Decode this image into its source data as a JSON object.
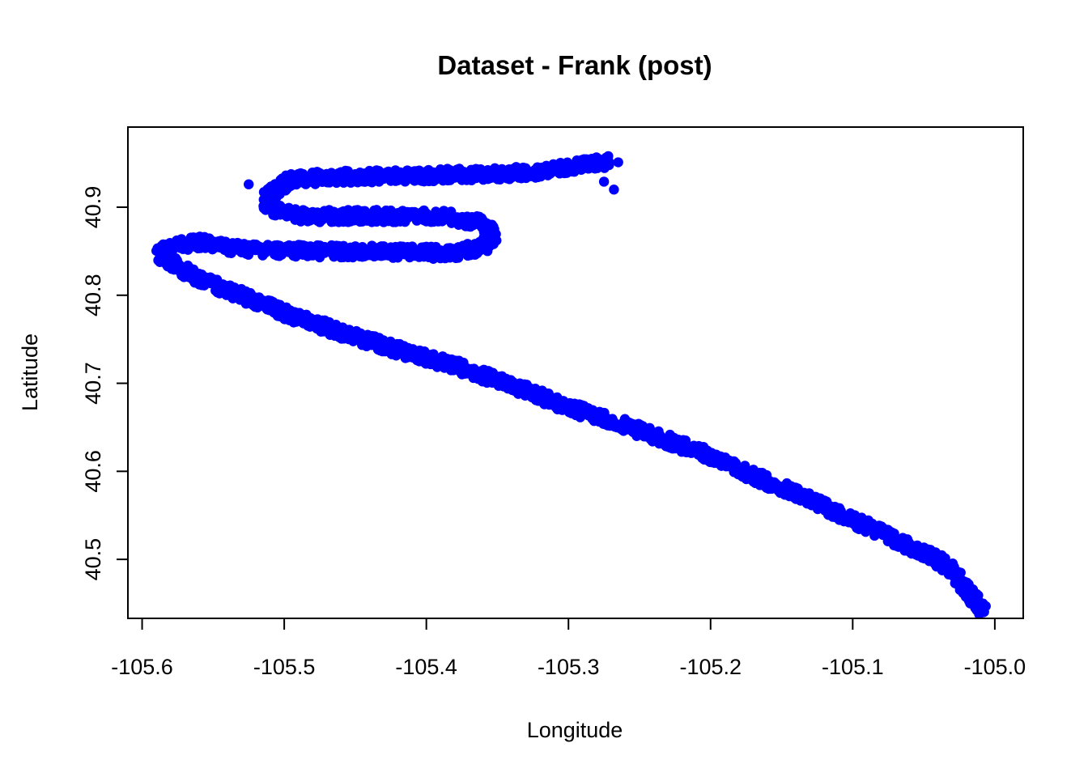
{
  "chart_data": {
    "type": "scatter",
    "title": "Dataset - Frank (post)",
    "xlabel": "Longitude",
    "ylabel": "Latitude",
    "xlim": [
      -105.61,
      -104.98
    ],
    "ylim": [
      40.433,
      40.991
    ],
    "xticks": [
      -105.6,
      -105.5,
      -105.4,
      -105.3,
      -105.2,
      -105.1,
      -105.0
    ],
    "xtick_labels": [
      "-105.6",
      "-105.5",
      "-105.4",
      "-105.3",
      "-105.2",
      "-105.1",
      "-105.0"
    ],
    "yticks": [
      40.5,
      40.6,
      40.7,
      40.8,
      40.9
    ],
    "ytick_labels": [
      "40.5",
      "40.6",
      "40.7",
      "40.8",
      "40.9"
    ],
    "grid": false,
    "legend": "none",
    "marker_color": "#0000ff",
    "series": [
      {
        "path": [
          [
            -105.008,
            40.44
          ],
          [
            -105.01,
            40.447
          ],
          [
            -105.018,
            40.46
          ],
          [
            -105.025,
            40.477
          ],
          [
            -105.032,
            40.49
          ],
          [
            -105.045,
            40.505
          ],
          [
            -105.06,
            40.515
          ],
          [
            -105.08,
            40.53
          ],
          [
            -105.1,
            40.545
          ],
          [
            -105.12,
            40.56
          ],
          [
            -105.14,
            40.575
          ],
          [
            -105.17,
            40.595
          ],
          [
            -105.2,
            40.618
          ],
          [
            -105.23,
            40.635
          ],
          [
            -105.26,
            40.652
          ],
          [
            -105.3,
            40.673
          ],
          [
            -105.34,
            40.698
          ],
          [
            -105.38,
            40.72
          ],
          [
            -105.42,
            40.738
          ],
          [
            -105.46,
            40.758
          ],
          [
            -105.5,
            40.78
          ],
          [
            -105.53,
            40.8
          ],
          [
            -105.555,
            40.815
          ],
          [
            -105.57,
            40.828
          ],
          [
            -105.58,
            40.838
          ],
          [
            -105.588,
            40.846
          ],
          [
            -105.58,
            40.855
          ],
          [
            -105.56,
            40.86
          ],
          [
            -105.53,
            40.853
          ],
          [
            -105.48,
            40.85
          ],
          [
            -105.42,
            40.849
          ],
          [
            -105.38,
            40.848
          ],
          [
            -105.36,
            40.855
          ],
          [
            -105.352,
            40.868
          ],
          [
            -105.36,
            40.882
          ],
          [
            -105.39,
            40.89
          ],
          [
            -105.44,
            40.89
          ],
          [
            -105.49,
            40.89
          ],
          [
            -105.51,
            40.898
          ],
          [
            -105.512,
            40.912
          ],
          [
            -105.495,
            40.932
          ],
          [
            -105.45,
            40.935
          ],
          [
            -105.4,
            40.936
          ],
          [
            -105.35,
            40.938
          ],
          [
            -105.32,
            40.94
          ],
          [
            -105.3,
            40.945
          ],
          [
            -105.285,
            40.95
          ],
          [
            -105.27,
            40.952
          ]
        ],
        "band_width": 0.014,
        "extra_points": [
          [
            -105.265,
            40.951
          ],
          [
            -105.268,
            40.92
          ],
          [
            -105.275,
            40.929
          ],
          [
            -105.525,
            40.926
          ],
          [
            -105.492,
            40.778
          ],
          [
            -105.462,
            40.758
          ],
          [
            -105.555,
            40.816
          ],
          [
            -105.503,
            40.789
          ]
        ]
      }
    ]
  }
}
